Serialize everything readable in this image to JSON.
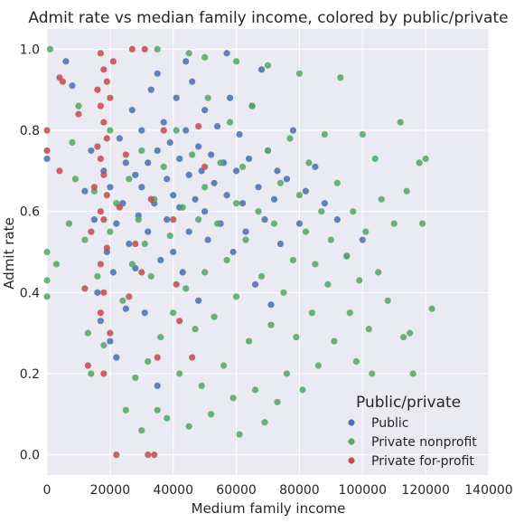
{
  "chart_data": {
    "type": "scatter",
    "title": "Admit rate vs median family income, colored by public/private",
    "xlabel": "Medium family income",
    "ylabel": "Admit rate",
    "xlim": [
      0,
      140000
    ],
    "ylim": [
      -0.05,
      1.05
    ],
    "x_ticks": [
      0,
      20000,
      40000,
      60000,
      80000,
      100000,
      120000,
      140000
    ],
    "y_ticks": [
      0.0,
      0.2,
      0.4,
      0.6,
      0.8,
      1.0
    ],
    "grid": true,
    "background": "#eaeaf2",
    "legend": {
      "title": "Public/private",
      "placement": "lower-right",
      "entries": [
        "Public",
        "Private nonprofit",
        "Private for-profit"
      ]
    },
    "series": [
      {
        "name": "Public",
        "color": "#4c72b0",
        "points": [
          [
            0,
            0.73
          ],
          [
            6000,
            0.97
          ],
          [
            8000,
            0.91
          ],
          [
            12000,
            0.65
          ],
          [
            14000,
            0.75
          ],
          [
            15000,
            0.58
          ],
          [
            16000,
            0.4
          ],
          [
            17000,
            0.33
          ],
          [
            18000,
            0.7
          ],
          [
            19000,
            0.5
          ],
          [
            20000,
            0.28
          ],
          [
            20000,
            0.66
          ],
          [
            21000,
            0.45
          ],
          [
            22000,
            0.57
          ],
          [
            22000,
            0.24
          ],
          [
            23000,
            0.78
          ],
          [
            24000,
            0.62
          ],
          [
            25000,
            0.72
          ],
          [
            25000,
            0.36
          ],
          [
            26000,
            0.52
          ],
          [
            27000,
            0.85
          ],
          [
            28000,
            0.69
          ],
          [
            28000,
            0.46
          ],
          [
            29000,
            0.59
          ],
          [
            30000,
            0.8
          ],
          [
            30000,
            0.66
          ],
          [
            31000,
            0.35
          ],
          [
            32000,
            0.72
          ],
          [
            32000,
            0.55
          ],
          [
            33000,
            0.9
          ],
          [
            34000,
            0.62
          ],
          [
            35000,
            0.75
          ],
          [
            35000,
            0.17
          ],
          [
            36000,
            0.48
          ],
          [
            37000,
            0.82
          ],
          [
            38000,
            0.68
          ],
          [
            38000,
            0.58
          ],
          [
            39000,
            0.77
          ],
          [
            40000,
            0.64
          ],
          [
            40000,
            0.5
          ],
          [
            41000,
            0.88
          ],
          [
            42000,
            0.73
          ],
          [
            42000,
            0.61
          ],
          [
            43000,
            0.45
          ],
          [
            44000,
            0.8
          ],
          [
            45000,
            0.69
          ],
          [
            45000,
            0.55
          ],
          [
            46000,
            0.92
          ],
          [
            47000,
            0.63
          ],
          [
            48000,
            0.76
          ],
          [
            48000,
            0.38
          ],
          [
            49000,
            0.7
          ],
          [
            50000,
            0.85
          ],
          [
            50000,
            0.6
          ],
          [
            51000,
            0.53
          ],
          [
            52000,
            0.74
          ],
          [
            53000,
            0.67
          ],
          [
            54000,
            0.81
          ],
          [
            55000,
            0.57
          ],
          [
            56000,
            0.72
          ],
          [
            57000,
            0.64
          ],
          [
            58000,
            0.88
          ],
          [
            59000,
            0.5
          ],
          [
            60000,
            0.7
          ],
          [
            61000,
            0.79
          ],
          [
            62000,
            0.62
          ],
          [
            63000,
            0.55
          ],
          [
            64000,
            0.73
          ],
          [
            65000,
            0.86
          ],
          [
            66000,
            0.42
          ],
          [
            67000,
            0.66
          ],
          [
            68000,
            0.95
          ],
          [
            69000,
            0.58
          ],
          [
            70000,
            0.75
          ],
          [
            71000,
            0.37
          ],
          [
            72000,
            0.63
          ],
          [
            73000,
            0.7
          ],
          [
            74000,
            0.52
          ],
          [
            76000,
            0.68
          ],
          [
            78000,
            0.8
          ],
          [
            80000,
            0.57
          ],
          [
            82000,
            0.65
          ],
          [
            85000,
            0.71
          ],
          [
            88000,
            0.62
          ],
          [
            92000,
            0.58
          ],
          [
            95000,
            0.49
          ],
          [
            100000,
            0.53
          ],
          [
            35000,
            0.94
          ],
          [
            44000,
            0.97
          ],
          [
            57000,
            0.99
          ]
        ]
      },
      {
        "name": "Private nonprofit",
        "color": "#55a868",
        "points": [
          [
            0,
            0.5
          ],
          [
            0,
            0.43
          ],
          [
            0,
            0.39
          ],
          [
            1000,
            1.0
          ],
          [
            3000,
            0.47
          ],
          [
            7000,
            0.57
          ],
          [
            8000,
            0.77
          ],
          [
            9000,
            0.68
          ],
          [
            10000,
            0.86
          ],
          [
            12000,
            0.53
          ],
          [
            13000,
            0.3
          ],
          [
            14000,
            0.2
          ],
          [
            15000,
            0.65
          ],
          [
            16000,
            0.44
          ],
          [
            18000,
            0.27
          ],
          [
            20000,
            0.55
          ],
          [
            20000,
            0.8
          ],
          [
            22000,
            0.62
          ],
          [
            24000,
            0.38
          ],
          [
            25000,
            0.11
          ],
          [
            26000,
            0.68
          ],
          [
            27000,
            0.47
          ],
          [
            28000,
            0.19
          ],
          [
            29000,
            0.58
          ],
          [
            30000,
            0.75
          ],
          [
            30000,
            0.06
          ],
          [
            31000,
            0.52
          ],
          [
            32000,
            0.23
          ],
          [
            33000,
            0.44
          ],
          [
            34000,
            0.63
          ],
          [
            35000,
            0.11
          ],
          [
            36000,
            0.29
          ],
          [
            37000,
            0.71
          ],
          [
            38000,
            0.09
          ],
          [
            39000,
            0.54
          ],
          [
            40000,
            0.35
          ],
          [
            41000,
            0.8
          ],
          [
            42000,
            0.2
          ],
          [
            43000,
            0.61
          ],
          [
            44000,
            0.41
          ],
          [
            45000,
            0.07
          ],
          [
            46000,
            0.74
          ],
          [
            47000,
            0.31
          ],
          [
            48000,
            0.58
          ],
          [
            49000,
            0.17
          ],
          [
            50000,
            0.66
          ],
          [
            50000,
            0.45
          ],
          [
            51000,
            0.88
          ],
          [
            52000,
            0.1
          ],
          [
            53000,
            0.34
          ],
          [
            54000,
            0.57
          ],
          [
            55000,
            0.72
          ],
          [
            56000,
            0.22
          ],
          [
            57000,
            0.48
          ],
          [
            58000,
            0.82
          ],
          [
            59000,
            0.14
          ],
          [
            60000,
            0.62
          ],
          [
            60000,
            0.39
          ],
          [
            61000,
            0.05
          ],
          [
            62000,
            0.71
          ],
          [
            63000,
            0.53
          ],
          [
            64000,
            0.28
          ],
          [
            65000,
            0.86
          ],
          [
            66000,
            0.16
          ],
          [
            67000,
            0.6
          ],
          [
            68000,
            0.44
          ],
          [
            69000,
            0.08
          ],
          [
            70000,
            0.75
          ],
          [
            71000,
            0.32
          ],
          [
            72000,
            0.57
          ],
          [
            73000,
            0.13
          ],
          [
            74000,
            0.67
          ],
          [
            75000,
            0.4
          ],
          [
            76000,
            0.2
          ],
          [
            77000,
            0.78
          ],
          [
            78000,
            0.48
          ],
          [
            79000,
            0.29
          ],
          [
            80000,
            0.64
          ],
          [
            81000,
            0.16
          ],
          [
            82000,
            0.55
          ],
          [
            83000,
            0.72
          ],
          [
            84000,
            0.35
          ],
          [
            85000,
            0.47
          ],
          [
            86000,
            0.22
          ],
          [
            87000,
            0.6
          ],
          [
            88000,
            0.79
          ],
          [
            89000,
            0.42
          ],
          [
            90000,
            0.53
          ],
          [
            91000,
            0.28
          ],
          [
            92000,
            0.67
          ],
          [
            93000,
            0.93
          ],
          [
            95000,
            0.49
          ],
          [
            96000,
            0.35
          ],
          [
            97000,
            0.6
          ],
          [
            98000,
            0.23
          ],
          [
            99000,
            0.43
          ],
          [
            100000,
            0.79
          ],
          [
            101000,
            0.55
          ],
          [
            102000,
            0.31
          ],
          [
            103000,
            0.2
          ],
          [
            104000,
            0.73
          ],
          [
            105000,
            0.45
          ],
          [
            106000,
            0.63
          ],
          [
            108000,
            0.38
          ],
          [
            110000,
            0.57
          ],
          [
            112000,
            0.82
          ],
          [
            113000,
            0.29
          ],
          [
            114000,
            0.65
          ],
          [
            115000,
            0.3
          ],
          [
            116000,
            0.2
          ],
          [
            118000,
            0.72
          ],
          [
            119000,
            0.57
          ],
          [
            120000,
            0.73
          ],
          [
            122000,
            0.36
          ],
          [
            50000,
            0.98
          ],
          [
            60000,
            0.97
          ],
          [
            70000,
            0.96
          ],
          [
            80000,
            0.94
          ],
          [
            35000,
            1.0
          ],
          [
            45000,
            0.99
          ]
        ]
      },
      {
        "name": "Private for-profit",
        "color": "#c44e52",
        "points": [
          [
            0,
            0.8
          ],
          [
            0,
            0.75
          ],
          [
            4000,
            0.7
          ],
          [
            4000,
            0.93
          ],
          [
            5000,
            0.92
          ],
          [
            10000,
            0.84
          ],
          [
            12000,
            0.41
          ],
          [
            13000,
            0.22
          ],
          [
            14000,
            0.55
          ],
          [
            15000,
            0.66
          ],
          [
            16000,
            0.9
          ],
          [
            16000,
            0.76
          ],
          [
            17000,
            0.99
          ],
          [
            17000,
            0.86
          ],
          [
            17000,
            0.73
          ],
          [
            17000,
            0.6
          ],
          [
            17000,
            0.47
          ],
          [
            17000,
            0.35
          ],
          [
            18000,
            0.95
          ],
          [
            18000,
            0.82
          ],
          [
            18000,
            0.69
          ],
          [
            18000,
            0.58
          ],
          [
            18000,
            0.4
          ],
          [
            18000,
            0.2
          ],
          [
            19000,
            0.92
          ],
          [
            19000,
            0.78
          ],
          [
            19000,
            0.64
          ],
          [
            19000,
            0.51
          ],
          [
            20000,
            0.88
          ],
          [
            20000,
            0.3
          ],
          [
            21000,
            0.97
          ],
          [
            22000,
            0.0
          ],
          [
            23000,
            0.61
          ],
          [
            25000,
            0.74
          ],
          [
            26000,
            0.39
          ],
          [
            28000,
            0.52
          ],
          [
            30000,
            0.45
          ],
          [
            32000,
            0.0
          ],
          [
            33000,
            0.63
          ],
          [
            34000,
            0.0
          ],
          [
            35000,
            0.24
          ],
          [
            37000,
            0.8
          ],
          [
            40000,
            0.58
          ],
          [
            41000,
            0.42
          ],
          [
            42000,
            0.33
          ],
          [
            46000,
            0.24
          ],
          [
            48000,
            0.81
          ],
          [
            50000,
            0.71
          ],
          [
            27000,
            1.0
          ],
          [
            31000,
            1.0
          ]
        ]
      }
    ]
  }
}
